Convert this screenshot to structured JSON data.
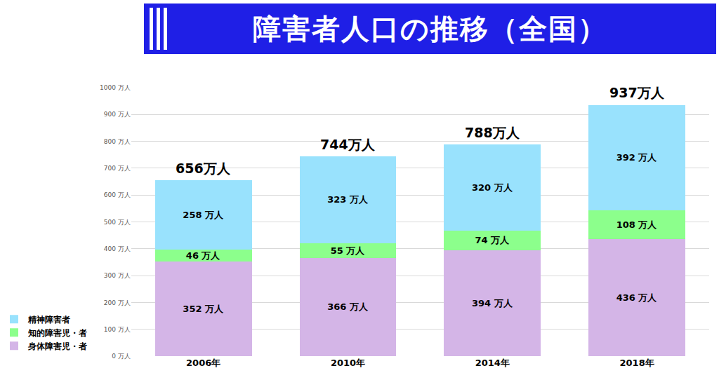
{
  "chart_data": {
    "type": "bar",
    "title": "障害者人口の推移（全国）",
    "stacked": true,
    "categories": [
      "2006年",
      "2010年",
      "2014年",
      "2018年"
    ],
    "series": [
      {
        "name": "身体障害児・者",
        "color": "#d4b5e7",
        "values": [
          352,
          366,
          394,
          436
        ],
        "value_labels": [
          "352 万人",
          "366 万人",
          "394 万人",
          "436 万人"
        ]
      },
      {
        "name": "知的障害児・者",
        "color": "#8cff8c",
        "values": [
          46,
          55,
          74,
          108
        ],
        "value_labels": [
          "46 万人",
          "55 万人",
          "74 万人",
          "108 万人"
        ]
      },
      {
        "name": "精神障害者",
        "color": "#99e2fd",
        "values": [
          258,
          323,
          320,
          392
        ],
        "value_labels": [
          "258 万人",
          "323 万人",
          "320 万人",
          "392 万人"
        ]
      }
    ],
    "totals": [
      656,
      744,
      788,
      937
    ],
    "total_labels": [
      "656万人",
      "744万人",
      "788万人",
      "937万人"
    ],
    "data_labels": true,
    "ylim": [
      0,
      1000
    ],
    "yticks": [
      {
        "value": 0,
        "label": "0 万人"
      },
      {
        "value": 100,
        "label": "100 万人"
      },
      {
        "value": 200,
        "label": "200 万人"
      },
      {
        "value": 300,
        "label": "300 万人"
      },
      {
        "value": 400,
        "label": "400 万人"
      },
      {
        "value": 500,
        "label": "500 万人"
      },
      {
        "value": 600,
        "label": "600 万人"
      },
      {
        "value": 700,
        "label": "700 万人"
      },
      {
        "value": 800,
        "label": "800 万人"
      },
      {
        "value": 900,
        "label": "900 万人"
      },
      {
        "value": 1000,
        "label": "1000 万人"
      }
    ],
    "grid": true,
    "legend": "bottom left"
  }
}
